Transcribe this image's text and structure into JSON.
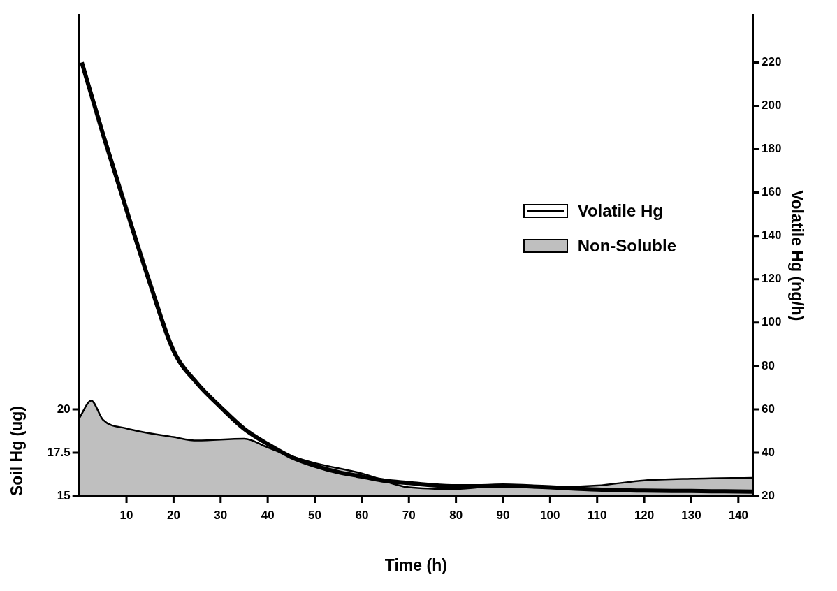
{
  "chart_data": {
    "type": "line",
    "xlabel": "Time (h)",
    "ylabel": "Soil Hg (ug)",
    "y2label": "Volatile Hg (ng/h)",
    "xlim": [
      0,
      143
    ],
    "xticks": [
      10,
      20,
      30,
      40,
      50,
      60,
      70,
      80,
      90,
      100,
      110,
      120,
      130,
      140
    ],
    "ylim": [
      15,
      42.75
    ],
    "yticks": [
      15,
      17.5,
      20
    ],
    "y2lim": [
      20,
      242
    ],
    "y2ticks": [
      20,
      40,
      60,
      80,
      100,
      120,
      140,
      160,
      180,
      200,
      220
    ],
    "grid": false,
    "legend": "right",
    "marker": "none",
    "series": [
      {
        "name": "Volatile Hg",
        "type": "line",
        "axis": "y2",
        "color": "#000000",
        "x": [
          0.5,
          5,
          10,
          15,
          20,
          25,
          30,
          35,
          40,
          45,
          50,
          55,
          60,
          65,
          70,
          75,
          80,
          85,
          90,
          95,
          100,
          110,
          120,
          130,
          143
        ],
        "values": [
          220,
          187,
          152,
          118,
          87,
          72,
          61,
          51,
          44,
          38,
          34,
          31,
          29,
          27,
          26,
          25,
          24.5,
          24.5,
          24.8,
          24.5,
          24,
          23,
          22.5,
          22.3,
          22
        ]
      },
      {
        "name": "Non-Soluble",
        "type": "area",
        "axis": "y",
        "color": "#000000",
        "x": [
          0,
          2.5,
          5,
          10,
          20,
          25,
          35,
          40,
          45,
          50,
          60,
          70,
          80,
          90,
          100,
          110,
          120,
          130,
          143
        ],
        "values": [
          19.5,
          20.5,
          19.4,
          18.9,
          18.4,
          18.2,
          18.3,
          17.8,
          17.3,
          16.9,
          16.3,
          15.5,
          15.4,
          15.6,
          15.5,
          15.6,
          15.9,
          16,
          16.05
        ]
      }
    ]
  }
}
